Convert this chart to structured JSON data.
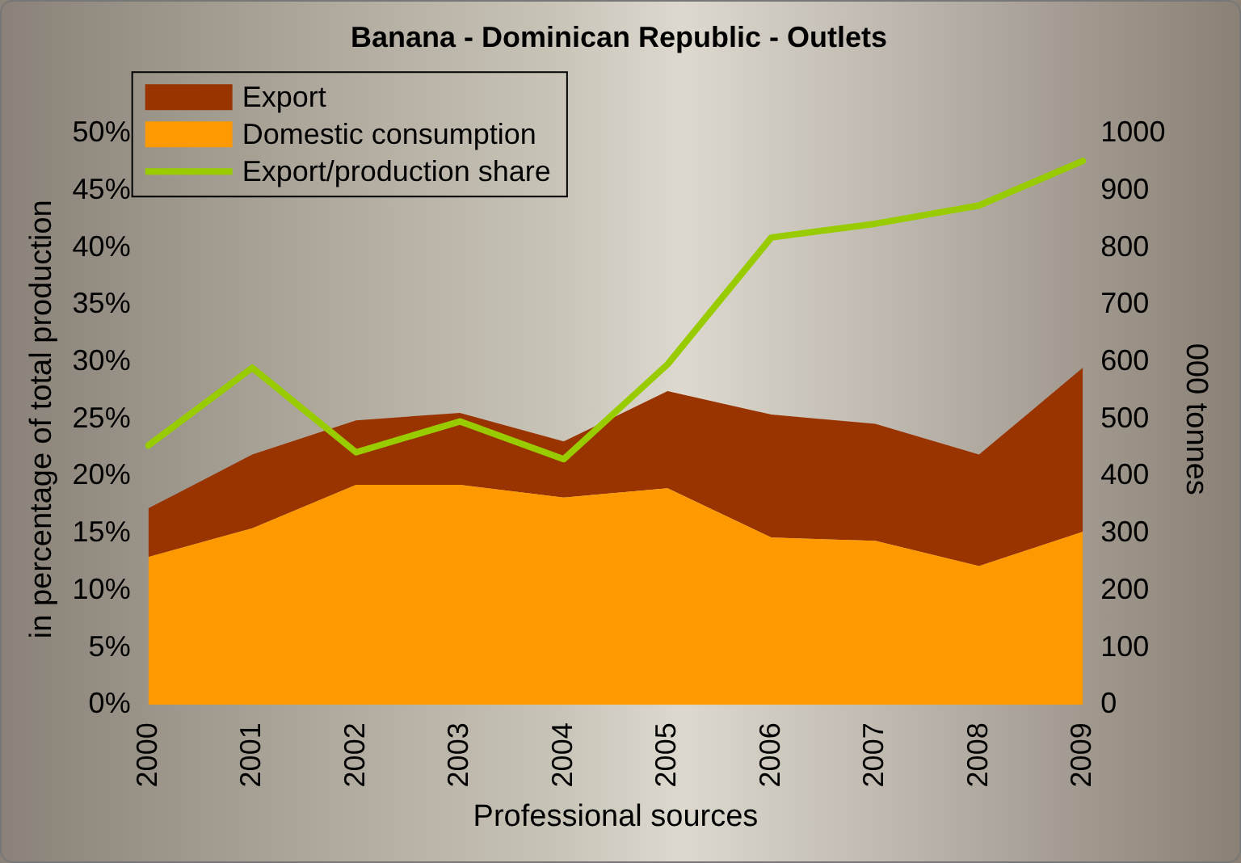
{
  "chart_data": {
    "type": "area",
    "title": "Banana - Dominican Republic - Outlets",
    "xlabel": "Professional sources",
    "ylabel": "in percentage of total production",
    "y2label": "000 tonnes",
    "categories": [
      "2000",
      "2001",
      "2002",
      "2003",
      "2004",
      "2005",
      "2006",
      "2007",
      "2008",
      "2009"
    ],
    "stacked": true,
    "series": [
      {
        "name": "Domestic consumption",
        "axis": "y2",
        "color": "#ff9900",
        "values": [
          259,
          309,
          385,
          385,
          363,
          379,
          293,
          287,
          243,
          303
        ]
      },
      {
        "name": "Export",
        "axis": "y2",
        "color": "#993300",
        "values": [
          85,
          129,
          113,
          126,
          98,
          170,
          215,
          205,
          195,
          287
        ]
      },
      {
        "name": "Export/production share",
        "type": "line",
        "color": "#99cc00",
        "values": [
          22.7,
          29.5,
          22.1,
          24.8,
          21.5,
          29.8,
          40.9,
          42.1,
          43.7,
          47.6
        ]
      }
    ],
    "ylim": [
      0,
      50
    ],
    "yticks": [
      {
        "value": 0,
        "label": "0%"
      },
      {
        "value": 5,
        "label": "5%"
      },
      {
        "value": 10,
        "label": "10%"
      },
      {
        "value": 15,
        "label": "15%"
      },
      {
        "value": 20,
        "label": "20%"
      },
      {
        "value": 25,
        "label": "25%"
      },
      {
        "value": 30,
        "label": "30%"
      },
      {
        "value": 35,
        "label": "35%"
      },
      {
        "value": 40,
        "label": "40%"
      },
      {
        "value": 45,
        "label": "45%"
      },
      {
        "value": 50,
        "label": "50%"
      }
    ],
    "y2lim": [
      0,
      1000
    ],
    "y2ticks": [
      0,
      100,
      200,
      300,
      400,
      500,
      600,
      700,
      800,
      900,
      1000
    ],
    "grid": false,
    "legend": "top left",
    "marker": "none",
    "line_style": "solid"
  }
}
